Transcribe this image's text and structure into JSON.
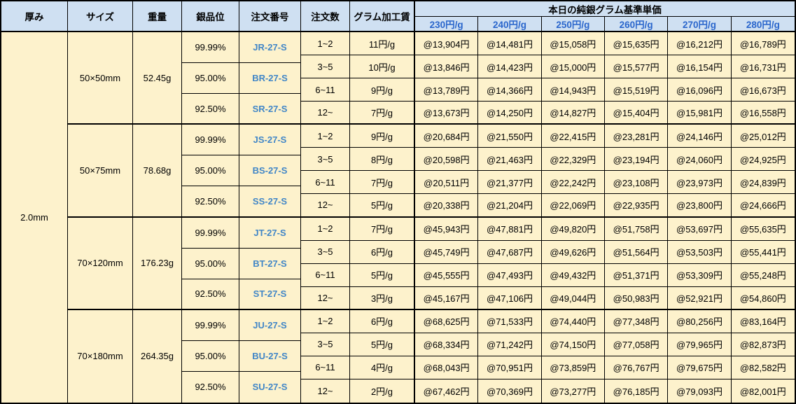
{
  "header": {
    "columns": [
      "厚み",
      "サイズ",
      "重量",
      "銀品位",
      "注文番号",
      "注文数",
      "グラム加工賃"
    ],
    "price_group_title": "本日の純銀グラム基準単価",
    "price_columns": [
      "230円/g",
      "240円/g",
      "250円/g",
      "260円/g",
      "270円/g",
      "280円/g"
    ]
  },
  "thickness": "2.0mm",
  "colors": {
    "header_bg": "#cfe0f2",
    "cell_bg": "#fdf2cc",
    "border": "#000000",
    "price_header_text": "#2a66cc",
    "order_no_text": "#4186c7"
  },
  "blocks": [
    {
      "size": "50×50mm",
      "weight": "52.45g",
      "purities": [
        {
          "grade": "99.99%",
          "order_no": "JR-27-S"
        },
        {
          "grade": "95.00%",
          "order_no": "BR-27-S"
        },
        {
          "grade": "92.50%",
          "order_no": "SR-27-S"
        }
      ],
      "rows": [
        {
          "qty": "1~2",
          "fee": "11円/g",
          "prices": [
            "@13,904円",
            "@14,481円",
            "@15,058円",
            "@15,635円",
            "@16,212円",
            "@16,789円"
          ]
        },
        {
          "qty": "3~5",
          "fee": "10円/g",
          "prices": [
            "@13,846円",
            "@14,423円",
            "@15,000円",
            "@15,577円",
            "@16,154円",
            "@16,731円"
          ]
        },
        {
          "qty": "6~11",
          "fee": "9円/g",
          "prices": [
            "@13,789円",
            "@14,366円",
            "@14,943円",
            "@15,519円",
            "@16,096円",
            "@16,673円"
          ]
        },
        {
          "qty": "12~",
          "fee": "7円/g",
          "prices": [
            "@13,673円",
            "@14,250円",
            "@14,827円",
            "@15,404円",
            "@15,981円",
            "@16,558円"
          ]
        }
      ]
    },
    {
      "size": "50×75mm",
      "weight": "78.68g",
      "purities": [
        {
          "grade": "99.99%",
          "order_no": "JS-27-S"
        },
        {
          "grade": "95.00%",
          "order_no": "BS-27-S"
        },
        {
          "grade": "92.50%",
          "order_no": "SS-27-S"
        }
      ],
      "rows": [
        {
          "qty": "1~2",
          "fee": "9円/g",
          "prices": [
            "@20,684円",
            "@21,550円",
            "@22,415円",
            "@23,281円",
            "@24,146円",
            "@25,012円"
          ]
        },
        {
          "qty": "3~5",
          "fee": "8円/g",
          "prices": [
            "@20,598円",
            "@21,463円",
            "@22,329円",
            "@23,194円",
            "@24,060円",
            "@24,925円"
          ]
        },
        {
          "qty": "6~11",
          "fee": "7円/g",
          "prices": [
            "@20,511円",
            "@21,377円",
            "@22,242円",
            "@23,108円",
            "@23,973円",
            "@24,839円"
          ]
        },
        {
          "qty": "12~",
          "fee": "5円/g",
          "prices": [
            "@20,338円",
            "@21,204円",
            "@22,069円",
            "@22,935円",
            "@23,800円",
            "@24,666円"
          ]
        }
      ]
    },
    {
      "size": "70×120mm",
      "weight": "176.23g",
      "purities": [
        {
          "grade": "99.99%",
          "order_no": "JT-27-S"
        },
        {
          "grade": "95.00%",
          "order_no": "BT-27-S"
        },
        {
          "grade": "92.50%",
          "order_no": "ST-27-S"
        }
      ],
      "rows": [
        {
          "qty": "1~2",
          "fee": "7円/g",
          "prices": [
            "@45,943円",
            "@47,881円",
            "@49,820円",
            "@51,758円",
            "@53,697円",
            "@55,635円"
          ]
        },
        {
          "qty": "3~5",
          "fee": "6円/g",
          "prices": [
            "@45,749円",
            "@47,687円",
            "@49,626円",
            "@51,564円",
            "@53,503円",
            "@55,441円"
          ]
        },
        {
          "qty": "6~11",
          "fee": "5円/g",
          "prices": [
            "@45,555円",
            "@47,493円",
            "@49,432円",
            "@51,371円",
            "@53,309円",
            "@55,248円"
          ]
        },
        {
          "qty": "12~",
          "fee": "3円/g",
          "prices": [
            "@45,167円",
            "@47,106円",
            "@49,044円",
            "@50,983円",
            "@52,921円",
            "@54,860円"
          ]
        }
      ]
    },
    {
      "size": "70×180mm",
      "weight": "264.35g",
      "purities": [
        {
          "grade": "99.99%",
          "order_no": "JU-27-S"
        },
        {
          "grade": "95.00%",
          "order_no": "BU-27-S"
        },
        {
          "grade": "92.50%",
          "order_no": "SU-27-S"
        }
      ],
      "rows": [
        {
          "qty": "1~2",
          "fee": "6円/g",
          "prices": [
            "@68,625円",
            "@71,533円",
            "@74,440円",
            "@77,348円",
            "@80,256円",
            "@83,164円"
          ]
        },
        {
          "qty": "3~5",
          "fee": "5円/g",
          "prices": [
            "@68,334円",
            "@71,242円",
            "@74,150円",
            "@77,058円",
            "@79,965円",
            "@82,873円"
          ]
        },
        {
          "qty": "6~11",
          "fee": "4円/g",
          "prices": [
            "@68,043円",
            "@70,951円",
            "@73,859円",
            "@76,767円",
            "@79,675円",
            "@82,582円"
          ]
        },
        {
          "qty": "12~",
          "fee": "2円/g",
          "prices": [
            "@67,462円",
            "@70,369円",
            "@73,277円",
            "@76,185円",
            "@79,093円",
            "@82,001円"
          ]
        }
      ]
    }
  ]
}
